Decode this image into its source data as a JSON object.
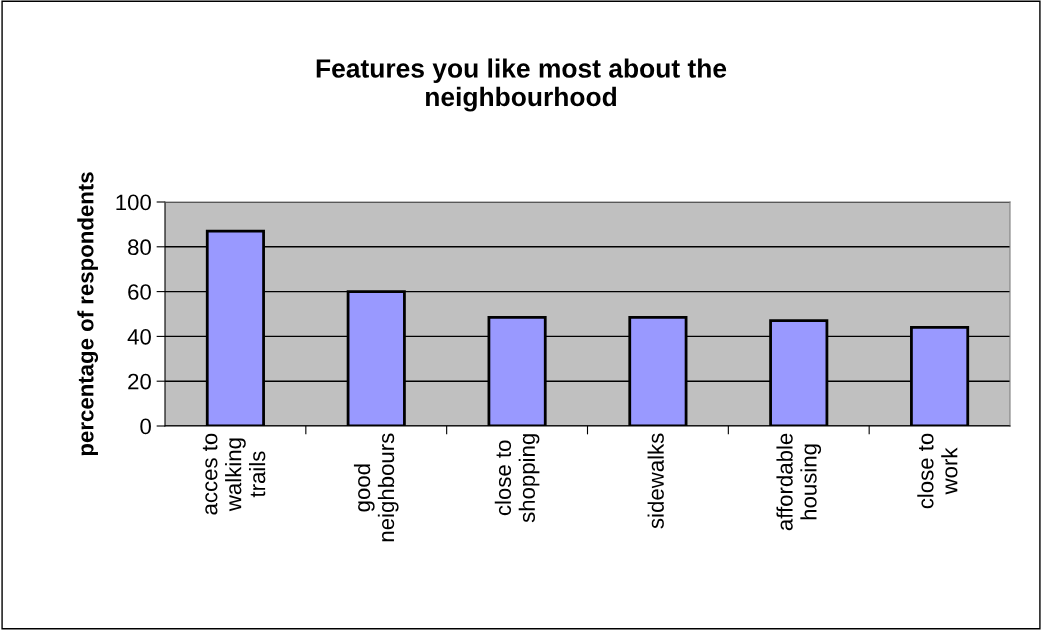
{
  "chart_data": {
    "type": "bar",
    "title": "Features you like most about the\nneighbourhood",
    "ylabel": "percentage of respondents",
    "categories": [
      "acces to\nwalking\ntrails",
      "good\nneighbours",
      "close to\nshopping",
      "sidewalks",
      "affordable\nhousing",
      "close to\nwork"
    ],
    "values": [
      87,
      60,
      48.5,
      48.5,
      47,
      44
    ],
    "color": "#9999ff",
    "ylim": [
      0,
      100
    ],
    "yticks": [
      0,
      20,
      40,
      60,
      80,
      100
    ],
    "grid": "y",
    "legend": false
  }
}
